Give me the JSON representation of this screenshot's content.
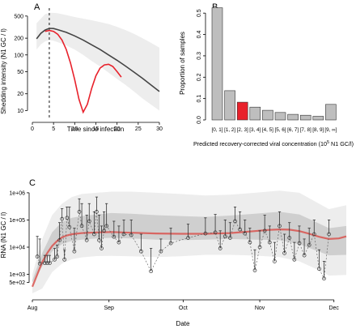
{
  "panels": {
    "a_label": "A",
    "b_label": "B",
    "c_label": "C"
  },
  "colors": {
    "model_curve": "#444444",
    "highlight": "#e8212b",
    "band_outer": "#ededed",
    "band_inner": "#cfcfcf",
    "bar_fill": "#bebebe",
    "mean_line": "#d9534f"
  },
  "chart_data": [
    {
      "id": "A",
      "type": "line",
      "title": "",
      "xlabel": "Time since infection",
      "ylabel": "Shedding intensity (N1 GC / l)",
      "xlim": [
        0,
        30
      ],
      "ylim": [
        7,
        650
      ],
      "log_y": true,
      "x_ticks": [
        0,
        5,
        10,
        15,
        20,
        25,
        30
      ],
      "y_ticks": [
        10,
        20,
        50,
        100,
        200,
        500
      ],
      "vline_x": 4,
      "series": [
        {
          "role": "model",
          "x": [
            1,
            2,
            3,
            4,
            5,
            6,
            8,
            10,
            12,
            14,
            16,
            18,
            20,
            22,
            24,
            26,
            28,
            30
          ],
          "y": [
            195,
            245,
            280,
            300,
            298,
            285,
            255,
            220,
            185,
            152,
            125,
            100,
            80,
            63,
            49,
            38,
            29,
            22
          ],
          "lower": [
            125,
            155,
            175,
            185,
            180,
            170,
            148,
            125,
            100,
            78,
            62,
            48,
            37,
            29,
            22,
            16.5,
            12.8,
            10
          ],
          "upper": [
            370,
            450,
            540,
            570,
            570,
            560,
            520,
            480,
            450,
            420,
            390,
            360,
            320,
            280,
            240,
            200,
            165,
            135
          ]
        },
        {
          "role": "highlight",
          "x": [
            3,
            4,
            5,
            6,
            7,
            8,
            9,
            10,
            11,
            12,
            13,
            14,
            15,
            16,
            17,
            18,
            19,
            20,
            21
          ],
          "y": [
            265,
            275,
            265,
            235,
            185,
            125,
            72,
            36,
            16,
            9.3,
            13,
            25,
            42,
            58,
            66,
            68,
            62,
            50,
            40
          ]
        }
      ]
    },
    {
      "id": "B",
      "type": "bar",
      "title": "",
      "xlabel": "Predicted recovery-corrected viral concentration (10",
      "xlabel_exp": "5",
      "xlabel_tail": " N1 GC/l)",
      "ylabel": "Proportion of samples",
      "ylim": [
        0,
        0.55
      ],
      "y_ticks": [
        0.0,
        0.1,
        0.2,
        0.3,
        0.4,
        0.5
      ],
      "categories": [
        "[0, 1]",
        "[1, 2]",
        "[2, 3]",
        "[3, 4]",
        "[4, 5]",
        "[5, 6]",
        "[6, 7]",
        "[7, 8]",
        "[8, 9]",
        "[9, ∞]"
      ],
      "values": [
        0.525,
        0.137,
        0.083,
        0.06,
        0.045,
        0.035,
        0.026,
        0.022,
        0.017,
        0.073
      ],
      "highlight_index": 2
    },
    {
      "id": "C",
      "type": "scatter",
      "title": "",
      "xlabel": "Date",
      "ylabel": "RNA (N1 GC / l)",
      "x_ticks": [
        "Aug",
        "Sep",
        "Oct",
        "Nov",
        "Dec"
      ],
      "x_tick_days": [
        0,
        31,
        61,
        92,
        122
      ],
      "xlim": [
        0,
        127
      ],
      "ylim": [
        200,
        1500000
      ],
      "log_y": true,
      "y_ticks": [
        500,
        1000,
        10000,
        100000,
        1000000
      ],
      "y_tick_labels": [
        "5e+02",
        "1e+03",
        "1e+04",
        "1e+05",
        "1e+06"
      ],
      "band_outer": {
        "x": [
          0,
          4,
          8,
          12,
          16,
          20,
          26,
          32,
          40,
          50,
          60,
          70,
          80,
          90,
          100,
          108,
          114,
          120,
          127
        ],
        "lower": [
          200,
          300,
          1200,
          2500,
          3600,
          4200,
          4700,
          4800,
          4600,
          4300,
          4600,
          5200,
          5200,
          4900,
          4300,
          3000,
          1700,
          900,
          950
        ],
        "upper": [
          1000,
          20000,
          150000,
          400000,
          700000,
          900000,
          1000000,
          1100000,
          1100000,
          1000000,
          900000,
          800000,
          850000,
          1000000,
          1200000,
          1000000,
          500000,
          250000,
          350000
        ]
      },
      "band_inner": {
        "x": [
          0,
          4,
          8,
          12,
          16,
          20,
          26,
          32,
          40,
          50,
          60,
          70,
          80,
          90,
          100,
          108,
          114,
          120,
          127
        ],
        "lower": [
          500,
          2000,
          7000,
          13000,
          17000,
          19000,
          21000,
          22000,
          21000,
          19000,
          18000,
          19000,
          20000,
          19000,
          18000,
          13000,
          8000,
          5000,
          5200
        ],
        "upper": [
          600,
          6000,
          35000,
          85000,
          120000,
          140000,
          160000,
          180000,
          170000,
          150000,
          140000,
          130000,
          145000,
          170000,
          200000,
          160000,
          90000,
          50000,
          60000
        ]
      },
      "mean": {
        "x": [
          0,
          2,
          4,
          6,
          8,
          10,
          12,
          14,
          16,
          20,
          26,
          32,
          40,
          50,
          60,
          70,
          80,
          90,
          95,
          100,
          104,
          108,
          112,
          116,
          120,
          124,
          127
        ],
        "y": [
          350,
          1000,
          2800,
          6000,
          11000,
          17000,
          23000,
          27000,
          30000,
          33000,
          35000,
          36000,
          34000,
          32000,
          31000,
          31000,
          33000,
          39000,
          43000,
          45000,
          44000,
          39000,
          31000,
          24000,
          20000,
          21000,
          25000
        ]
      },
      "points": {
        "x": [
          2,
          3,
          5,
          6,
          7,
          9,
          10,
          11,
          12,
          13,
          14,
          15,
          17,
          19,
          20,
          22,
          23,
          25,
          26,
          27,
          28,
          29,
          30,
          33,
          35,
          37,
          40,
          44,
          48,
          52,
          56,
          63,
          70,
          74,
          76,
          78,
          80,
          82,
          84,
          86,
          88,
          90,
          92,
          94,
          96,
          98,
          100,
          102,
          104,
          106,
          108,
          110,
          112,
          114,
          116,
          118,
          120
        ],
        "y": [
          4500,
          2500,
          2600,
          2600,
          2600,
          3500,
          4500,
          18000,
          110000,
          3500,
          120000,
          55000,
          7000,
          200000,
          60000,
          18000,
          90000,
          30000,
          200000,
          18000,
          9000,
          40000,
          60000,
          24000,
          15000,
          30000,
          28000,
          7000,
          1300,
          7000,
          14000,
          22000,
          32000,
          35000,
          9000,
          25000,
          22000,
          90000,
          45000,
          32000,
          15000,
          1400,
          10000,
          40000,
          15000,
          3000,
          60000,
          6000,
          22000,
          3500,
          14000,
          5000,
          12000,
          30000,
          1600,
          700,
          30000
        ],
        "upper": [
          25000,
          20000,
          5000,
          5000,
          5000,
          9000,
          12000,
          80000,
          260000,
          8000,
          300000,
          300000,
          50000,
          600000,
          400000,
          150000,
          400000,
          200000,
          700000,
          150000,
          60000,
          200000,
          400000,
          90000,
          60000,
          100000,
          100000,
          30000,
          9000,
          20000,
          50000,
          70000,
          120000,
          160000,
          40000,
          100000,
          80000,
          300000,
          200000,
          100000,
          50000,
          8000,
          40000,
          150000,
          60000,
          15000,
          200000,
          30000,
          80000,
          15000,
          60000,
          20000,
          50000,
          100000,
          8000,
          3000,
          100000
        ]
      }
    }
  ]
}
